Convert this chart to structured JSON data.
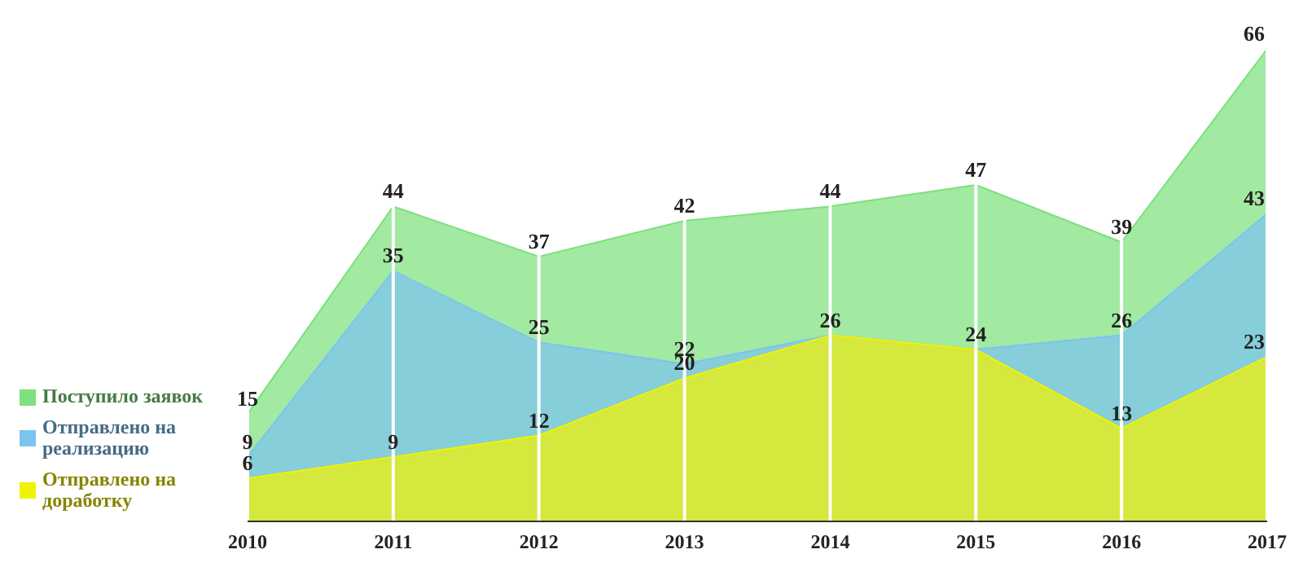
{
  "chart_data": {
    "type": "area",
    "categories": [
      "2010",
      "2011",
      "2012",
      "2013",
      "2014",
      "2015",
      "2016",
      "2017"
    ],
    "series": [
      {
        "name": "Поступило заявок",
        "color": "#7ee07e",
        "values": [
          15,
          44,
          37,
          42,
          44,
          47,
          39,
          66
        ],
        "value_labels": [
          "15",
          "44",
          "37",
          "42",
          "44",
          "47",
          "39",
          "66"
        ]
      },
      {
        "name": "Отправлено на реализацию",
        "color": "#7cc4f0",
        "values": [
          9,
          35,
          25,
          22,
          26,
          24,
          26,
          43
        ],
        "value_labels": [
          "9",
          "35",
          "25",
          "22",
          null,
          null,
          "26",
          "43"
        ]
      },
      {
        "name": "Отправлено на доработку",
        "color": "#f2f200",
        "values": [
          6,
          9,
          12,
          20,
          26,
          24,
          13,
          23
        ],
        "value_labels": [
          "6",
          "9",
          "12",
          "20",
          "26",
          "24",
          "13",
          "23"
        ]
      }
    ],
    "grid": "x",
    "legend": "left"
  }
}
